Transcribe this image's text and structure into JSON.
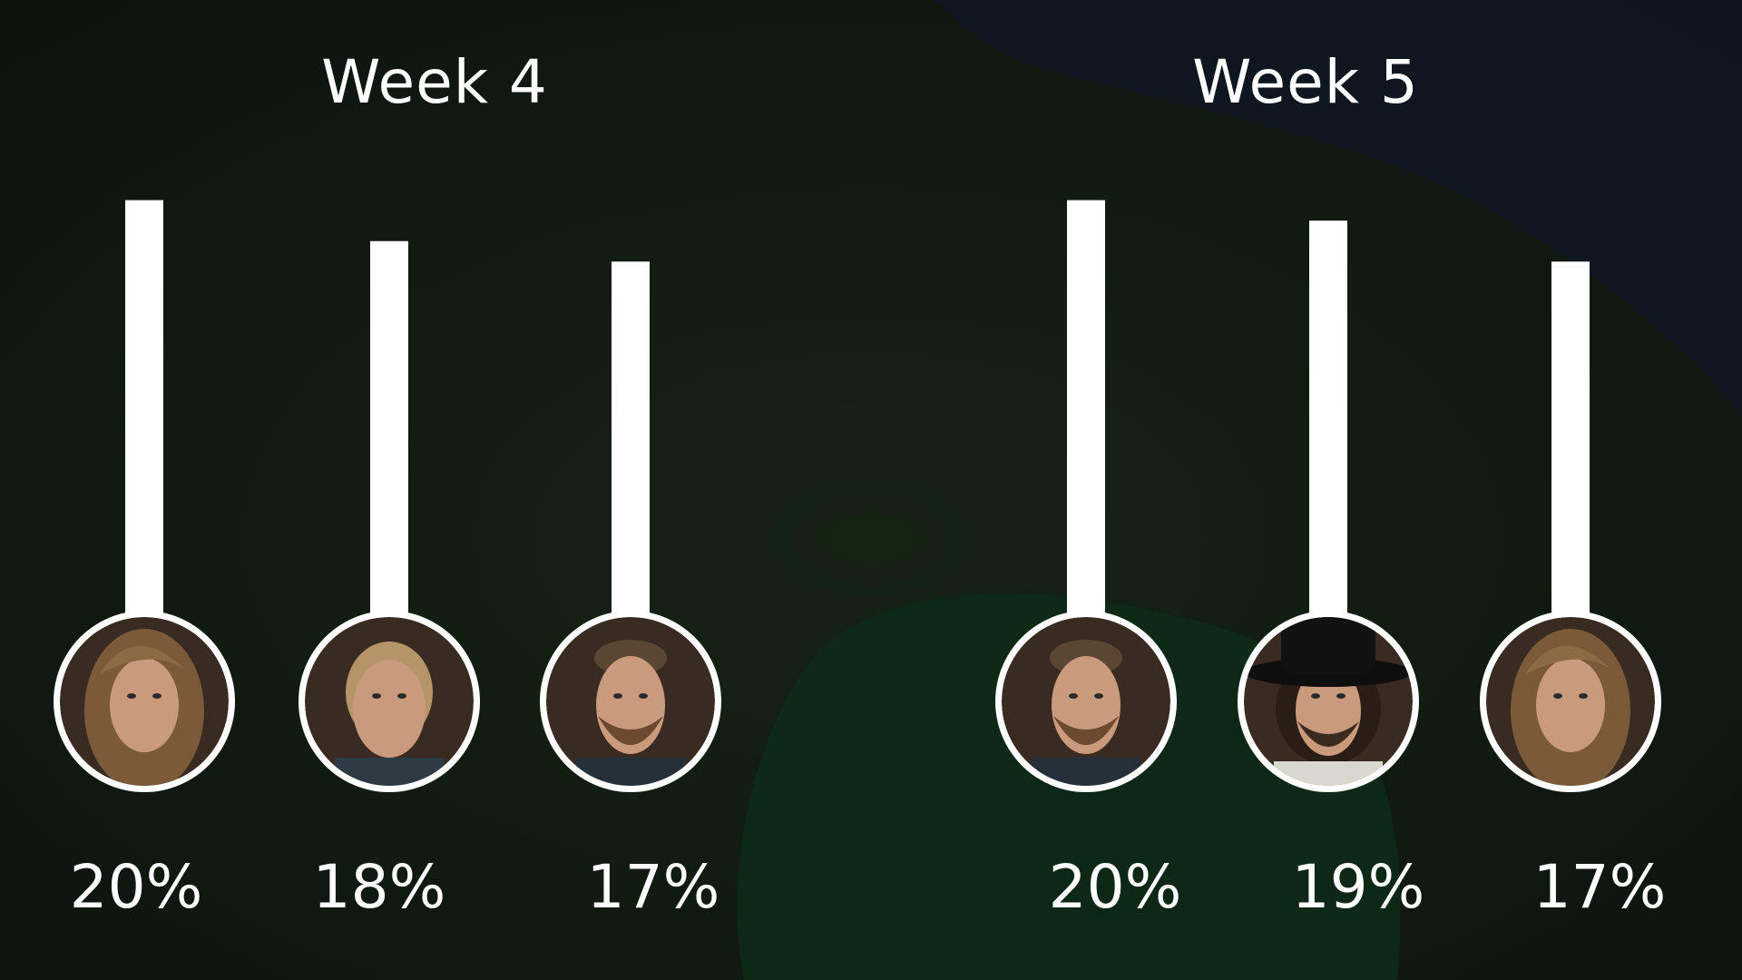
{
  "colors": {
    "background": "#101610",
    "bar": "#ffffff",
    "ring": "#ffffff",
    "text": "#ffffff"
  },
  "chart_data": [
    {
      "type": "bar",
      "title": "Week 4",
      "categories": [
        "female-long-wavy-hair",
        "female-hair-tied-back",
        "male-beard-shaved-sides"
      ],
      "values": [
        20,
        18,
        17
      ],
      "labels": [
        "20%",
        "18%",
        "17%"
      ],
      "ylim": [
        0,
        21
      ]
    },
    {
      "type": "bar",
      "title": "Week 5",
      "categories": [
        "male-beard-shaved-sides",
        "male-black-hat-beard",
        "female-long-wavy-hair"
      ],
      "values": [
        20,
        19,
        17
      ],
      "labels": [
        "20%",
        "19%",
        "17%"
      ],
      "ylim": [
        0,
        21
      ]
    }
  ]
}
